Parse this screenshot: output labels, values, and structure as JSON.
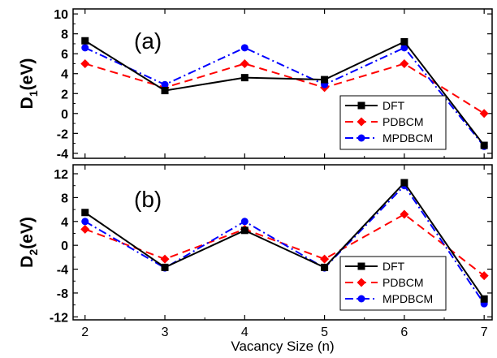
{
  "chart_data": [
    {
      "type": "line",
      "panel_label": "(a)",
      "ylabel_main": "D",
      "ylabel_sub": "1",
      "ylabel_unit": "(eV)",
      "xlabel": "",
      "x": [
        2,
        3,
        4,
        5,
        6,
        7
      ],
      "xlim": [
        1.85,
        7.1
      ],
      "ylim": [
        -4.5,
        10.5
      ],
      "yticks": [
        -4,
        -2,
        0,
        2,
        4,
        6,
        8,
        10
      ],
      "legend_position": "bottom-right",
      "series": [
        {
          "name": "DFT",
          "color": "#000000",
          "marker": "square",
          "dash": "solid",
          "values": [
            7.3,
            2.3,
            3.6,
            3.4,
            7.2,
            -3.2
          ]
        },
        {
          "name": "PDBCM",
          "color": "#ff0000",
          "marker": "diamond",
          "dash": "dashed",
          "values": [
            5.0,
            2.6,
            5.0,
            2.6,
            5.0,
            0.0
          ]
        },
        {
          "name": "MPDBCM",
          "color": "#0000ff",
          "marker": "circle",
          "dash": "dashdot",
          "values": [
            6.6,
            2.9,
            6.6,
            2.9,
            6.6,
            -3.3
          ]
        }
      ]
    },
    {
      "type": "line",
      "panel_label": "(b)",
      "ylabel_main": "D",
      "ylabel_sub": "2",
      "ylabel_unit": "(eV)",
      "xlabel": "Vacancy Size (n)",
      "x": [
        2,
        3,
        4,
        5,
        6,
        7
      ],
      "xtick_labels": [
        "2",
        "3",
        "4",
        "5",
        "6",
        "7"
      ],
      "xlim": [
        1.85,
        7.1
      ],
      "ylim": [
        -12.5,
        13.5
      ],
      "yticks": [
        -12,
        -8,
        -4,
        0,
        4,
        8,
        12
      ],
      "legend_position": "bottom-right",
      "series": [
        {
          "name": "DFT",
          "color": "#000000",
          "marker": "square",
          "dash": "solid",
          "values": [
            5.5,
            -3.7,
            2.5,
            -3.7,
            10.5,
            -9.0
          ]
        },
        {
          "name": "PDBCM",
          "color": "#ff0000",
          "marker": "diamond",
          "dash": "dashed",
          "values": [
            2.7,
            -2.3,
            2.7,
            -2.3,
            5.2,
            -5.1
          ]
        },
        {
          "name": "MPDBCM",
          "color": "#0000ff",
          "marker": "circle",
          "dash": "dashdot",
          "values": [
            4.0,
            -3.8,
            4.0,
            -3.8,
            10.0,
            -9.8
          ]
        }
      ]
    }
  ]
}
